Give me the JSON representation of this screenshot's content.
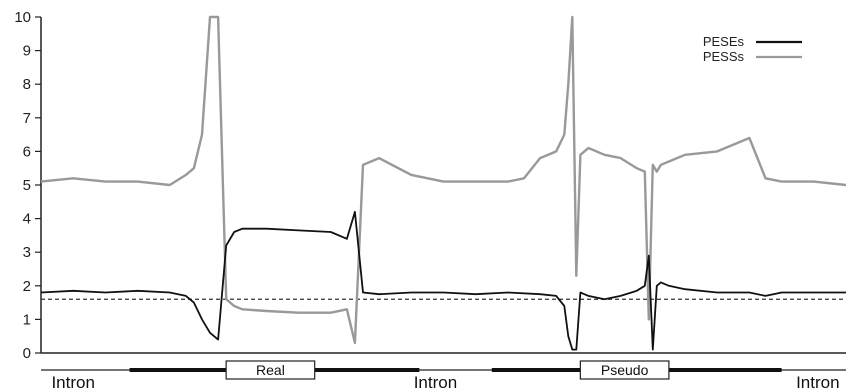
{
  "chart_data": {
    "type": "line",
    "title": "",
    "xlabel": "",
    "ylabel": "",
    "ylim": [
      0,
      10
    ],
    "yticks": [
      "0",
      "1",
      "2",
      "3",
      "4",
      "5",
      "6",
      "7",
      "8",
      "9",
      "10"
    ],
    "xlim": [
      0,
      100
    ],
    "grid": false,
    "legend_position": "top-right",
    "threshold": {
      "value": 1.6,
      "style": "dashed"
    },
    "series": [
      {
        "name": "PESEs",
        "color": "#111111",
        "x": [
          0,
          4,
          8,
          12,
          16,
          18,
          19,
          20,
          21,
          22,
          23,
          24,
          25,
          28,
          32,
          36,
          38,
          39,
          40,
          42,
          46,
          50,
          54,
          58,
          62,
          64,
          65,
          65.5,
          66,
          66.5,
          67,
          67.5,
          68,
          70,
          72,
          74,
          75,
          75.5,
          76,
          76.5,
          77,
          78,
          80,
          84,
          88,
          90,
          92,
          96,
          100
        ],
        "values": [
          1.8,
          1.85,
          1.8,
          1.85,
          1.8,
          1.7,
          1.5,
          1.0,
          0.6,
          0.4,
          3.2,
          3.6,
          3.7,
          3.7,
          3.65,
          3.6,
          3.4,
          4.2,
          1.8,
          1.75,
          1.8,
          1.8,
          1.75,
          1.8,
          1.75,
          1.7,
          1.4,
          0.5,
          0.1,
          0.1,
          1.8,
          1.75,
          1.7,
          1.6,
          1.7,
          1.85,
          2.0,
          2.9,
          0.1,
          2.0,
          2.1,
          2.0,
          1.9,
          1.8,
          1.8,
          1.7,
          1.8,
          1.8,
          1.8
        ]
      },
      {
        "name": "PESSs",
        "color": "#999999",
        "x": [
          0,
          4,
          8,
          12,
          16,
          18,
          19,
          20,
          21,
          22,
          23,
          24,
          25,
          28,
          32,
          36,
          38,
          39,
          40,
          42,
          46,
          50,
          54,
          58,
          60,
          62,
          64,
          65,
          65.5,
          66,
          66.5,
          67,
          67.5,
          68,
          70,
          72,
          74,
          75,
          75.5,
          76,
          76.5,
          77,
          78,
          80,
          84,
          88,
          90,
          92,
          96,
          100
        ],
        "values": [
          5.1,
          5.2,
          5.1,
          5.1,
          5.0,
          5.3,
          5.5,
          6.5,
          10,
          10,
          1.6,
          1.4,
          1.3,
          1.25,
          1.2,
          1.2,
          1.3,
          0.3,
          5.6,
          5.8,
          5.3,
          5.1,
          5.1,
          5.1,
          5.2,
          5.8,
          6.0,
          6.5,
          8.0,
          10,
          2.3,
          5.9,
          6.0,
          6.1,
          5.9,
          5.8,
          5.5,
          5.4,
          1.0,
          5.6,
          5.4,
          5.6,
          5.7,
          5.9,
          6.0,
          6.4,
          5.2,
          5.1,
          5.1,
          5.0
        ]
      }
    ]
  },
  "gene_track": {
    "exons": [
      {
        "label": "Real",
        "start": 23,
        "end": 34
      },
      {
        "label": "Pseudo",
        "start": 67,
        "end": 78
      }
    ],
    "thick_segments": [
      {
        "start": 11,
        "end": 47
      },
      {
        "start": 56,
        "end": 92
      }
    ],
    "introns": [
      {
        "label": "Intron",
        "center": 4
      },
      {
        "label": "Intron",
        "center": 49
      },
      {
        "label": "Intron",
        "center": 96.5
      }
    ]
  }
}
